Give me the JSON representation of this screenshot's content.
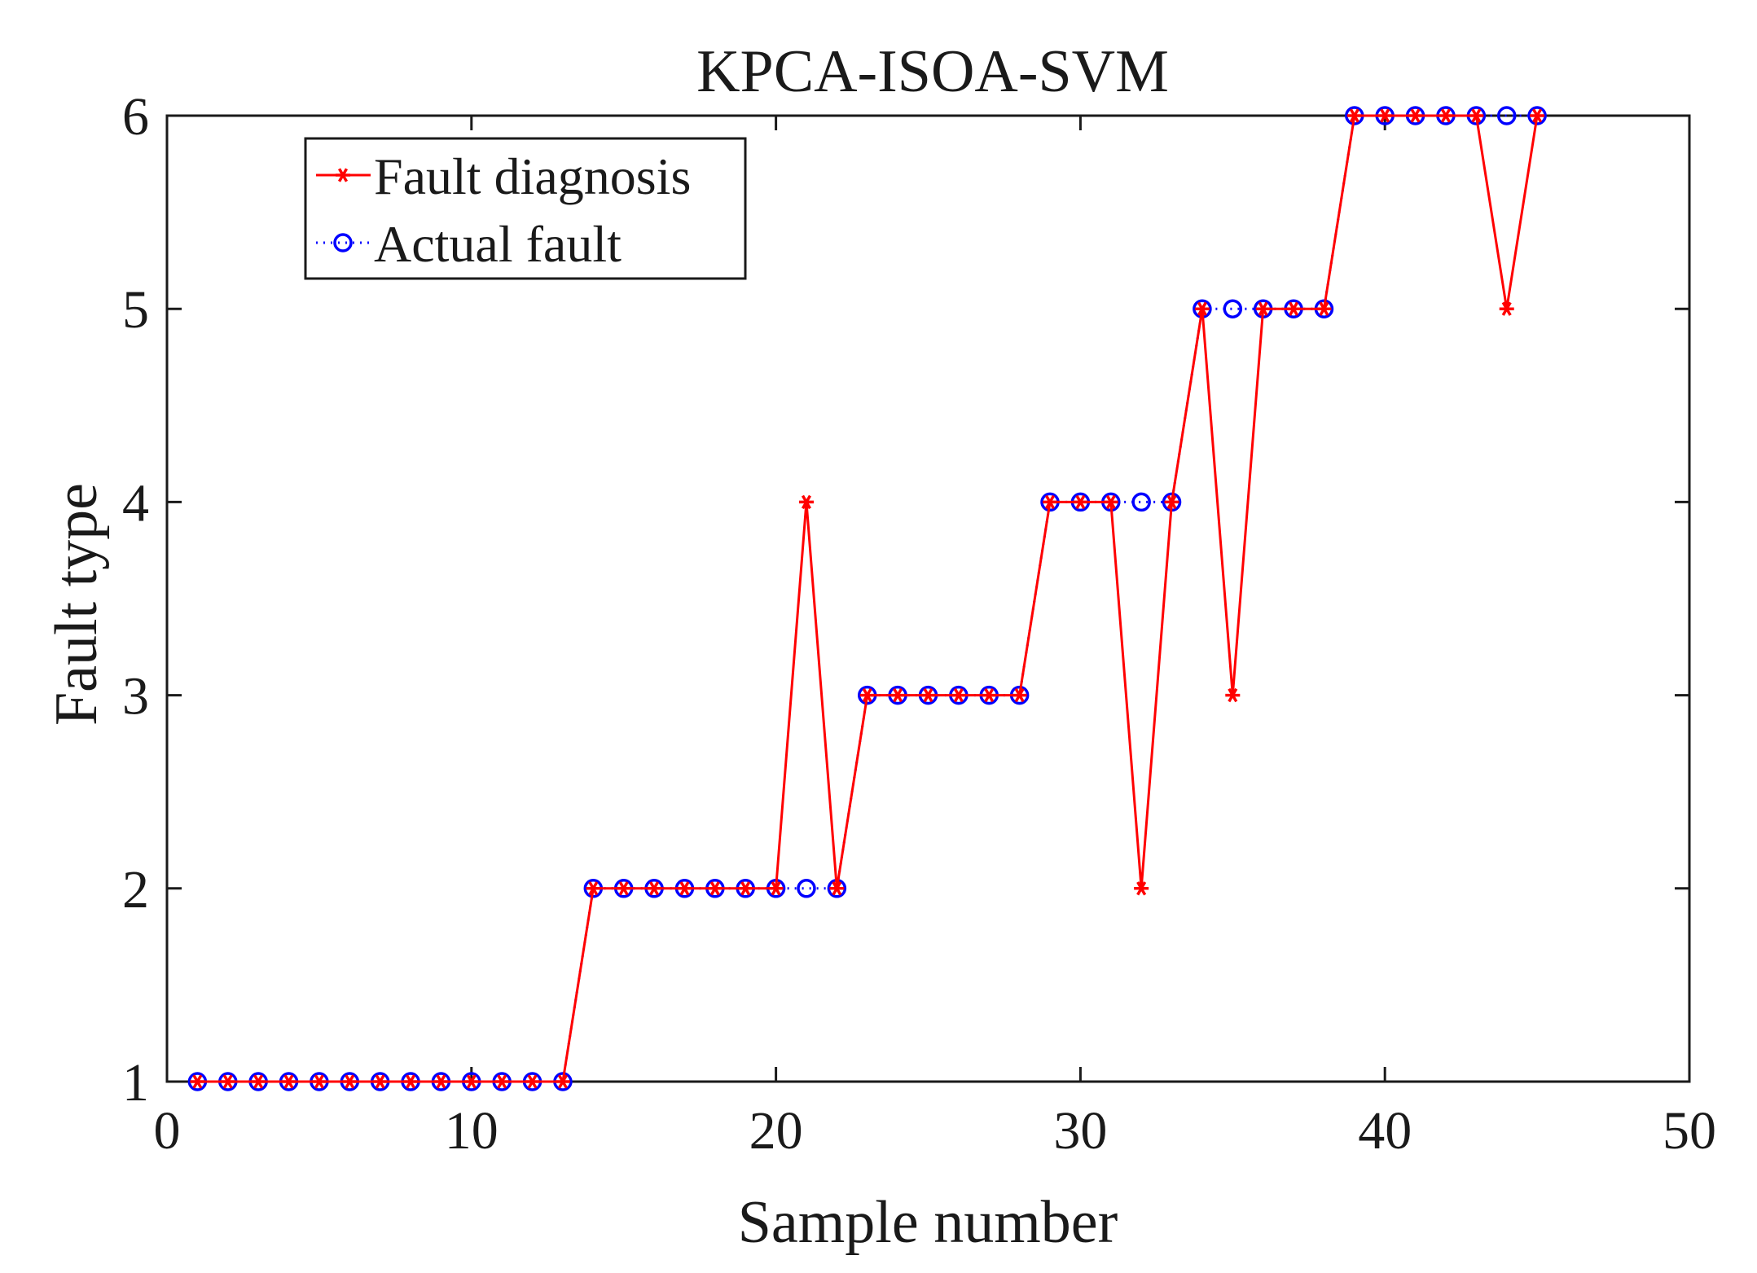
{
  "chart_data": {
    "type": "line",
    "title": "KPCA-ISOA-SVM",
    "xlabel": "Sample number",
    "ylabel": "Fault type",
    "xlim": [
      0,
      50
    ],
    "ylim": [
      1,
      6
    ],
    "xticks": [
      0,
      10,
      20,
      30,
      40,
      50
    ],
    "yticks": [
      1,
      2,
      3,
      4,
      5,
      6
    ],
    "grid": false,
    "legend_position": "top-left",
    "x": [
      1,
      2,
      3,
      4,
      5,
      6,
      7,
      8,
      9,
      10,
      11,
      12,
      13,
      14,
      15,
      16,
      17,
      18,
      19,
      20,
      21,
      22,
      23,
      24,
      25,
      26,
      27,
      28,
      29,
      30,
      31,
      32,
      33,
      34,
      35,
      36,
      37,
      38,
      39,
      40,
      41,
      42,
      43,
      44,
      45
    ],
    "series": [
      {
        "name": "Fault diagnosis",
        "color": "#ff0000",
        "marker": "asterisk",
        "line": "solid",
        "values": [
          1,
          1,
          1,
          1,
          1,
          1,
          1,
          1,
          1,
          1,
          1,
          1,
          1,
          2,
          2,
          2,
          2,
          2,
          2,
          2,
          4,
          2,
          3,
          3,
          3,
          3,
          3,
          3,
          4,
          4,
          4,
          2,
          4,
          5,
          3,
          5,
          5,
          5,
          6,
          6,
          6,
          6,
          6,
          5,
          6
        ]
      },
      {
        "name": "Actual fault",
        "color": "#0000ff",
        "marker": "circle",
        "line": "dotted",
        "values": [
          1,
          1,
          1,
          1,
          1,
          1,
          1,
          1,
          1,
          1,
          1,
          1,
          1,
          2,
          2,
          2,
          2,
          2,
          2,
          2,
          2,
          2,
          3,
          3,
          3,
          3,
          3,
          3,
          4,
          4,
          4,
          4,
          4,
          5,
          5,
          5,
          5,
          5,
          6,
          6,
          6,
          6,
          6,
          6,
          6
        ]
      }
    ]
  }
}
